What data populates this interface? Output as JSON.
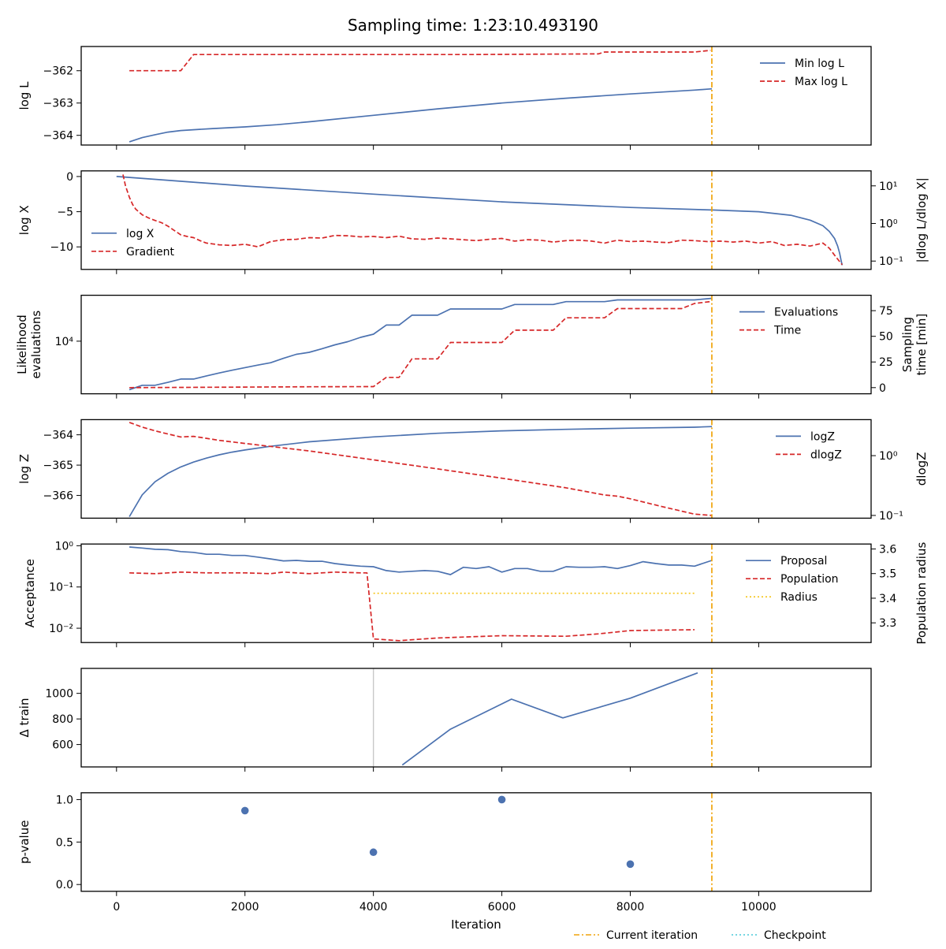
{
  "title": "Sampling time: 1:23:10.493190",
  "x_axis": {
    "label": "Iteration",
    "ticks": [
      0,
      2000,
      4000,
      6000,
      8000,
      10000
    ],
    "tick_labels": [
      "0",
      "2000",
      "4000",
      "6000",
      "8000",
      "10000"
    ],
    "range": [
      -550,
      11750
    ]
  },
  "colors": {
    "blue": "#4c72b0",
    "red": "#d62728",
    "orange": "#f0a30a",
    "gold": "#f5c518",
    "cyan": "#48c9d8",
    "grey": "#c8c8c8"
  },
  "bottom_legend": [
    {
      "label": "Current iteration",
      "color": "#f0a30a",
      "style": "dashdot"
    },
    {
      "label": "Checkpoint",
      "color": "#48c9d8",
      "style": "dotted"
    }
  ],
  "current_iteration": 9270,
  "chart_data": [
    {
      "type": "line",
      "ylabel": "log L",
      "ylim": [
        -364.3,
        -361.25
      ],
      "yticks": [
        -364,
        -363,
        -362
      ],
      "yticklabels": [
        "−364",
        "−363",
        "−362"
      ],
      "legend": {
        "placement": "top-right"
      },
      "series": [
        {
          "name": "Min log L",
          "color": "#4c72b0",
          "style": "solid",
          "x": [
            200,
            400,
            600,
            800,
            1000,
            1500,
            2000,
            2500,
            3000,
            4000,
            5000,
            6000,
            7000,
            8000,
            9000,
            9270
          ],
          "y": [
            -364.2,
            -364.07,
            -363.98,
            -363.9,
            -363.85,
            -363.79,
            -363.74,
            -363.67,
            -363.58,
            -363.38,
            -363.18,
            -363.0,
            -362.85,
            -362.72,
            -362.6,
            -362.56
          ]
        },
        {
          "name": "Max log L",
          "color": "#d62728",
          "style": "dashed",
          "x": [
            200,
            1000,
            1200,
            5500,
            7400,
            7500,
            7600,
            9000,
            9250
          ],
          "y": [
            -362.0,
            -362.0,
            -361.5,
            -361.5,
            -361.48,
            -361.48,
            -361.42,
            -361.42,
            -361.37
          ]
        }
      ]
    },
    {
      "type": "line",
      "ylabel": "log X",
      "ylabel_right": "|dlog L/dlog X|",
      "ylim": [
        -13.2,
        0.8
      ],
      "yticks": [
        0,
        -5,
        -10
      ],
      "yticklabels": [
        "0",
        "−5",
        "−10"
      ],
      "y2_scale": "log",
      "y2lim": [
        0.06,
        25
      ],
      "y2ticks": [
        10,
        1,
        0.1
      ],
      "y2ticklabels": [
        "10¹",
        "10⁰",
        "10⁻¹"
      ],
      "legend": {
        "placement": "lower-left"
      },
      "series": [
        {
          "name": "log X",
          "color": "#4c72b0",
          "style": "solid",
          "x": [
            0,
            2000,
            4000,
            6000,
            8000,
            9270,
            10000,
            10500,
            10800,
            11000,
            11100,
            11180,
            11230,
            11260,
            11280,
            11300
          ],
          "y": [
            0,
            -1.35,
            -2.5,
            -3.6,
            -4.4,
            -4.75,
            -5.0,
            -5.5,
            -6.2,
            -7.0,
            -7.8,
            -8.8,
            -9.9,
            -10.9,
            -11.8,
            -12.6
          ]
        },
        {
          "name": "Gradient",
          "color": "#d62728",
          "style": "dashed",
          "axis": "right",
          "x": [
            100,
            140,
            200,
            250,
            300,
            400,
            500,
            600,
            700,
            800,
            900,
            1000,
            1100,
            1200,
            1300,
            1400,
            1600,
            1800,
            2000,
            2200,
            2400,
            2600,
            2800,
            3000,
            3200,
            3400,
            3600,
            3800,
            4000,
            4200,
            4400,
            4600,
            4800,
            5000,
            5200,
            5400,
            5600,
            5800,
            6000,
            6200,
            6400,
            6600,
            6800,
            7000,
            7200,
            7400,
            7600,
            7800,
            8000,
            8200,
            8400,
            8600,
            8800,
            9000,
            9200,
            9400,
            9600,
            9800,
            10000,
            10200,
            10400,
            10600,
            10800,
            11000,
            11100,
            11200,
            11300
          ],
          "y": [
            20,
            10,
            5,
            3.2,
            2.4,
            1.7,
            1.4,
            1.2,
            1.05,
            0.85,
            0.65,
            0.5,
            0.45,
            0.42,
            0.35,
            0.3,
            0.27,
            0.26,
            0.28,
            0.24,
            0.33,
            0.37,
            0.38,
            0.42,
            0.41,
            0.48,
            0.47,
            0.44,
            0.45,
            0.42,
            0.46,
            0.39,
            0.38,
            0.41,
            0.39,
            0.37,
            0.35,
            0.38,
            0.4,
            0.34,
            0.37,
            0.36,
            0.32,
            0.35,
            0.36,
            0.34,
            0.3,
            0.36,
            0.33,
            0.34,
            0.32,
            0.31,
            0.36,
            0.35,
            0.33,
            0.34,
            0.32,
            0.34,
            0.3,
            0.33,
            0.26,
            0.28,
            0.25,
            0.3,
            0.22,
            0.13,
            0.08
          ]
        }
      ]
    },
    {
      "type": "line",
      "ylabel_lines": [
        "Likelihood",
        "evaluations"
      ],
      "ylabel_right_lines": [
        "Sampling",
        "time [min]"
      ],
      "y_scale": "log",
      "ylim": [
        3500,
        25000
      ],
      "yticks": [
        10000
      ],
      "yticklabels": [
        "10⁴"
      ],
      "y2lim": [
        -6,
        90
      ],
      "y2ticks": [
        0,
        25,
        50,
        75
      ],
      "y2ticklabels": [
        "0",
        "25",
        "50",
        "75"
      ],
      "legend": {
        "placement": "top-right"
      },
      "series": [
        {
          "name": "Evaluations",
          "color": "#4c72b0",
          "style": "solid",
          "x": [
            200,
            400,
            600,
            800,
            1000,
            1200,
            1400,
            1600,
            1800,
            2000,
            2200,
            2400,
            2600,
            2800,
            3000,
            3200,
            3400,
            3600,
            3800,
            4000,
            4200,
            4400,
            4600,
            4800,
            5000,
            5200,
            5400,
            5600,
            5800,
            6000,
            6200,
            6400,
            6600,
            6800,
            7000,
            7200,
            7400,
            7600,
            7800,
            8000,
            8200,
            8400,
            8600,
            8800,
            9000,
            9270
          ],
          "y": [
            3800,
            4150,
            4150,
            4400,
            4700,
            4700,
            5000,
            5300,
            5600,
            5900,
            6200,
            6500,
            7100,
            7700,
            8000,
            8600,
            9300,
            9900,
            10800,
            11500,
            13800,
            13800,
            16800,
            16800,
            16800,
            19000,
            19000,
            19000,
            19000,
            19000,
            20800,
            20800,
            20800,
            20800,
            22000,
            22000,
            22000,
            22000,
            22800,
            22800,
            22800,
            22800,
            22800,
            22800,
            22800,
            23500
          ]
        },
        {
          "name": "Time",
          "color": "#d62728",
          "style": "dashed",
          "axis": "right",
          "x": [
            200,
            1000,
            2000,
            3000,
            4000,
            4200,
            4400,
            4600,
            4800,
            5000,
            5200,
            5400,
            5600,
            5800,
            6000,
            6200,
            6400,
            6600,
            6800,
            7000,
            7200,
            7400,
            7600,
            7800,
            8000,
            8200,
            8400,
            8600,
            8800,
            9000,
            9270
          ],
          "y": [
            0,
            0.2,
            0.5,
            0.8,
            1,
            10,
            10,
            28,
            28,
            28,
            44,
            44,
            44,
            44,
            44,
            56,
            56,
            56,
            56,
            68,
            68,
            68,
            68,
            77,
            77,
            77,
            77,
            77,
            77,
            82,
            84
          ]
        }
      ]
    },
    {
      "type": "line",
      "ylabel": "log Z",
      "ylabel_right": "dlogZ",
      "ylim": [
        -366.75,
        -363.5
      ],
      "yticks": [
        -364,
        -365,
        -366
      ],
      "yticklabels": [
        "−364",
        "−365",
        "−366"
      ],
      "y2_scale": "log",
      "y2lim": [
        0.09,
        4
      ],
      "y2ticks": [
        1,
        0.1
      ],
      "y2ticklabels": [
        "10⁰",
        "10⁻¹"
      ],
      "legend": {
        "placement": "top-right"
      },
      "series": [
        {
          "name": "logZ",
          "color": "#4c72b0",
          "style": "solid",
          "x": [
            200,
            400,
            600,
            800,
            1000,
            1200,
            1400,
            1600,
            1800,
            2000,
            2400,
            3000,
            4000,
            5000,
            6000,
            7000,
            8000,
            9000,
            9270
          ],
          "y": [
            -366.7,
            -365.98,
            -365.55,
            -365.27,
            -365.06,
            -364.9,
            -364.77,
            -364.66,
            -364.57,
            -364.5,
            -364.38,
            -364.23,
            -364.07,
            -363.95,
            -363.87,
            -363.82,
            -363.78,
            -363.75,
            -363.73
          ]
        },
        {
          "name": "dlogZ",
          "color": "#d62728",
          "style": "dashed",
          "axis": "right",
          "x": [
            200,
            400,
            600,
            800,
            1000,
            1200,
            1400,
            1600,
            2000,
            3000,
            4000,
            5000,
            6000,
            7000,
            7600,
            7800,
            8000,
            8500,
            9000,
            9270
          ],
          "y": [
            3.6,
            3.0,
            2.6,
            2.3,
            2.05,
            2.1,
            1.95,
            1.8,
            1.6,
            1.2,
            0.85,
            0.6,
            0.42,
            0.29,
            0.22,
            0.21,
            0.19,
            0.14,
            0.105,
            0.1
          ]
        }
      ]
    },
    {
      "type": "line",
      "ylabel": "Acceptance",
      "ylabel_right": "Population radius",
      "y_scale": "log",
      "ylim": [
        0.0045,
        1.1
      ],
      "yticks": [
        1,
        0.1,
        0.01
      ],
      "yticklabels": [
        "10⁰",
        "10⁻¹",
        "10⁻²"
      ],
      "y2lim": [
        3.22,
        3.62
      ],
      "y2ticks": [
        3.6,
        3.5,
        3.4,
        3.3
      ],
      "y2ticklabels": [
        "3.6",
        "3.5",
        "3.4",
        "3.3"
      ],
      "legend": {
        "placement": "top-right"
      },
      "series": [
        {
          "name": "Proposal",
          "color": "#4c72b0",
          "style": "solid",
          "x": [
            200,
            400,
            600,
            800,
            1000,
            1200,
            1400,
            1600,
            1800,
            2000,
            2200,
            2400,
            2600,
            2800,
            3000,
            3200,
            3400,
            3600,
            3800,
            4000,
            4200,
            4400,
            4600,
            4800,
            5000,
            5200,
            5400,
            5600,
            5800,
            6000,
            6200,
            6400,
            6600,
            6800,
            7000,
            7200,
            7400,
            7600,
            7800,
            8000,
            8200,
            8400,
            8600,
            8800,
            9000,
            9270
          ],
          "y": [
            0.93,
            0.88,
            0.82,
            0.8,
            0.72,
            0.69,
            0.62,
            0.62,
            0.58,
            0.58,
            0.53,
            0.48,
            0.43,
            0.44,
            0.42,
            0.42,
            0.37,
            0.34,
            0.32,
            0.31,
            0.25,
            0.23,
            0.24,
            0.25,
            0.24,
            0.2,
            0.3,
            0.28,
            0.31,
            0.23,
            0.28,
            0.28,
            0.24,
            0.24,
            0.31,
            0.3,
            0.3,
            0.31,
            0.28,
            0.33,
            0.41,
            0.37,
            0.34,
            0.34,
            0.32,
            0.44
          ]
        },
        {
          "name": "Population",
          "color": "#d62728",
          "style": "dashed",
          "x": [
            200,
            600,
            1000,
            1400,
            2000,
            2400,
            2600,
            3000,
            3400,
            3800,
            3900,
            4000,
            4400,
            5000,
            6000,
            7000,
            7500,
            8000,
            9000
          ],
          "y": [
            0.22,
            0.21,
            0.23,
            0.22,
            0.22,
            0.21,
            0.23,
            0.21,
            0.23,
            0.22,
            0.22,
            0.0055,
            0.005,
            0.0058,
            0.0066,
            0.0064,
            0.0073,
            0.0088,
            0.0092
          ]
        },
        {
          "name": "Radius",
          "color": "#f5c518",
          "style": "dotted",
          "axis": "right",
          "x": [
            4000,
            9000
          ],
          "y": [
            3.42,
            3.42
          ]
        }
      ]
    },
    {
      "type": "line",
      "ylabel": "Δ train",
      "ylim": [
        425,
        1195
      ],
      "yticks": [
        600,
        800,
        1000
      ],
      "yticklabels": [
        "600",
        "800",
        "1000"
      ],
      "vline": {
        "x": 4000,
        "color": "#c8c8c8"
      },
      "series": [
        {
          "color": "#4c72b0",
          "style": "solid",
          "x": [
            4450,
            5200,
            6150,
            6950,
            8000,
            9050
          ],
          "y": [
            440,
            720,
            955,
            808,
            962,
            1160
          ]
        }
      ]
    },
    {
      "type": "scatter",
      "ylabel": "p-value",
      "ylim": [
        -0.08,
        1.08
      ],
      "yticks": [
        1.0,
        0.5,
        0.0
      ],
      "yticklabels": [
        "1.0",
        "0.5",
        "0.0"
      ],
      "series": [
        {
          "color": "#4c72b0",
          "x": [
            2000,
            4000,
            6000,
            8000
          ],
          "y": [
            0.87,
            0.38,
            1.0,
            0.24
          ]
        }
      ]
    }
  ]
}
